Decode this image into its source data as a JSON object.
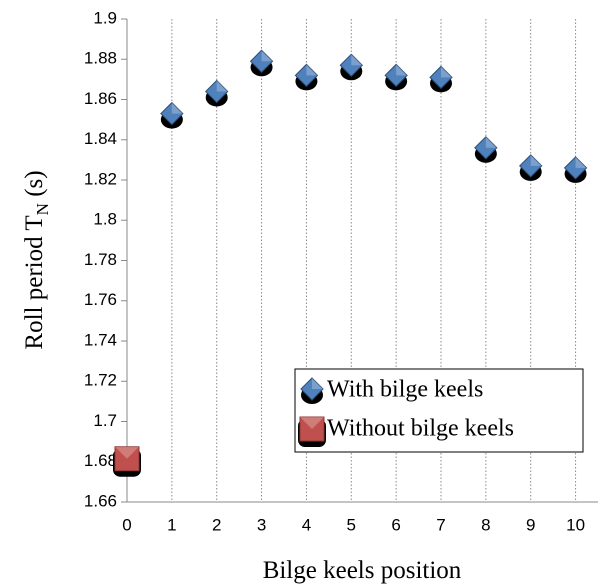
{
  "chart_data": {
    "type": "scatter",
    "x_label": "Bilge keels position",
    "y_label": {
      "main": "Roll period T",
      "sub": "N",
      "unit": " (s)"
    },
    "xlim": [
      0,
      10.5
    ],
    "xticks": [
      0,
      1,
      2,
      3,
      4,
      5,
      6,
      7,
      8,
      9,
      10
    ],
    "ylim": [
      1.66,
      1.9
    ],
    "yticks": [
      1.66,
      1.68,
      1.7,
      1.72,
      1.74,
      1.76,
      1.78,
      1.8,
      1.82,
      1.84,
      1.86,
      1.88,
      1.9
    ],
    "grid": "x",
    "legend": "lower right",
    "series": [
      {
        "name": "With bilge keels",
        "color": "#4f81bd",
        "marker": "diamond",
        "x": [
          1,
          2,
          3,
          4,
          5,
          6,
          7,
          8,
          9,
          10
        ],
        "values": [
          1.853,
          1.864,
          1.879,
          1.872,
          1.877,
          1.872,
          1.871,
          1.836,
          1.827,
          1.826
        ]
      },
      {
        "name": "Without bilge keels",
        "color": "#c0504d",
        "marker": "square",
        "x": [
          0
        ],
        "values": [
          1.681
        ]
      }
    ]
  }
}
